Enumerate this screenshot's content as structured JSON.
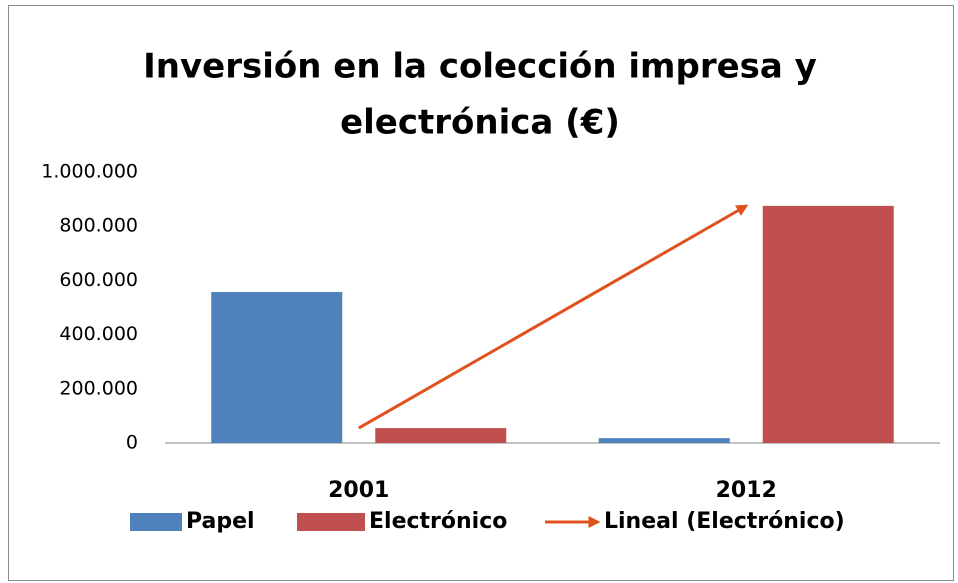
{
  "chart_data": {
    "type": "bar",
    "title": [
      "Inversión en la colección impresa y",
      "electrónica (€)"
    ],
    "categories": [
      "2001",
      "2012"
    ],
    "series": [
      {
        "name": "Papel",
        "color": "#4f81bd",
        "values": [
          557000,
          18000
        ]
      },
      {
        "name": "Electrónico",
        "color": "#c0504d",
        "values": [
          55000,
          875000
        ]
      }
    ],
    "trendline": {
      "name": "Lineal (Electrónico)",
      "color": "#e0511d"
    },
    "ylim": [
      0,
      1000000
    ],
    "yticks": [
      0,
      {
        "value": 200000,
        "label": "200.000"
      },
      {
        "value": 400000,
        "label": "400.000"
      },
      {
        "value": 600000,
        "label": "600.000"
      },
      {
        "value": 800000,
        "label": "800.000"
      },
      {
        "value": 1000000,
        "label": "1.000.000"
      }
    ],
    "legend": "bottom"
  }
}
